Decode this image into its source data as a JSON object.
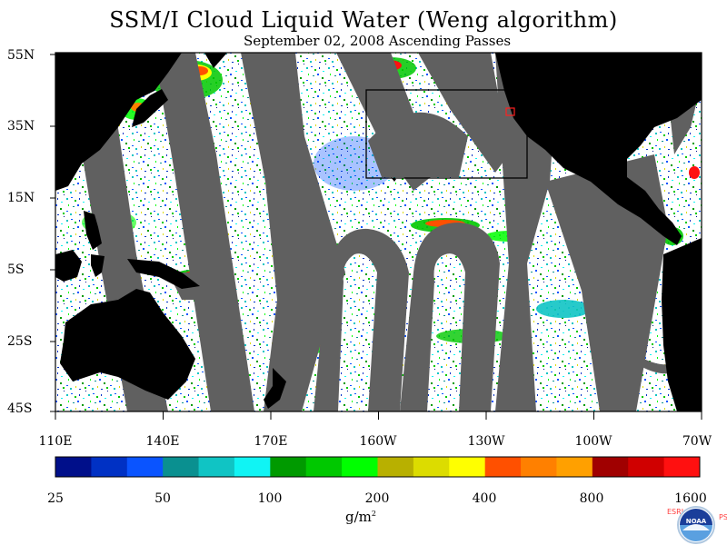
{
  "title": "SSM/I Cloud Liquid Water (Weng algorithm)",
  "subtitle": "September 02, 2008  Ascending Passes",
  "latitude_labels": [
    "55N",
    "35N",
    "15N",
    "5S",
    "25S",
    "45S"
  ],
  "longitude_labels": [
    "110E",
    "140E",
    "170E",
    "160W",
    "130W",
    "100W",
    "70W"
  ],
  "colorbar": {
    "colors": [
      "#000f8a",
      "#0031c4",
      "#0a54ff",
      "#0a9090",
      "#10c4c4",
      "#10f4f4",
      "#009a00",
      "#00c800",
      "#00ff00",
      "#b8b000",
      "#dcdc00",
      "#ffff00",
      "#ff5000",
      "#ff8000",
      "#ffa000",
      "#a00000",
      "#d00000",
      "#ff1010"
    ],
    "tick_labels": [
      "25",
      "50",
      "100",
      "200",
      "400",
      "800",
      "1600"
    ],
    "unit": "g/m",
    "unit_sup": "2"
  },
  "colors": {
    "land": "#000000",
    "no_data_gap": "#606060",
    "clear": "#ffffff"
  },
  "logo": {
    "name": "NOAA",
    "left_text": "ESRL",
    "right_text": "PSD"
  }
}
